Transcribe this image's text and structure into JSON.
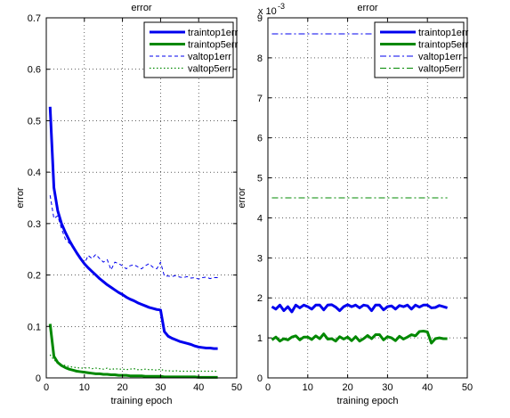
{
  "figure": {
    "left_title": "error",
    "right_title": "error",
    "right_exponent_base": "x 10",
    "right_exponent_power": "-3"
  },
  "chart_data": [
    {
      "type": "line",
      "title": "error",
      "xlabel": "training epoch",
      "ylabel": "error",
      "xlim": [
        0,
        50
      ],
      "ylim": [
        0,
        0.7
      ],
      "xticks": [
        0,
        10,
        20,
        30,
        40,
        50
      ],
      "yticks": [
        0,
        0.1,
        0.2,
        0.3,
        0.4,
        0.5,
        0.6,
        0.7
      ],
      "grid": true,
      "legend_position": "top-right",
      "x": [
        1,
        2,
        3,
        4,
        5,
        6,
        7,
        8,
        9,
        10,
        11,
        12,
        13,
        14,
        15,
        16,
        17,
        18,
        19,
        20,
        21,
        22,
        23,
        24,
        25,
        26,
        27,
        28,
        29,
        30,
        31,
        32,
        33,
        34,
        35,
        36,
        37,
        38,
        39,
        40,
        41,
        42,
        43,
        44,
        45
      ],
      "series": [
        {
          "name": "traintop1err",
          "color": "#0000ee",
          "style": "solid-thick",
          "values": [
            0.527,
            0.37,
            0.325,
            0.3,
            0.283,
            0.268,
            0.255,
            0.243,
            0.232,
            0.222,
            0.214,
            0.207,
            0.2,
            0.193,
            0.187,
            0.181,
            0.176,
            0.171,
            0.166,
            0.162,
            0.157,
            0.153,
            0.15,
            0.146,
            0.143,
            0.14,
            0.137,
            0.135,
            0.133,
            0.132,
            0.09,
            0.081,
            0.077,
            0.074,
            0.071,
            0.069,
            0.067,
            0.065,
            0.062,
            0.06,
            0.059,
            0.058,
            0.058,
            0.057,
            0.057
          ]
        },
        {
          "name": "traintop5err",
          "color": "#008800",
          "style": "solid-thick",
          "values": [
            0.105,
            0.042,
            0.03,
            0.024,
            0.02,
            0.017,
            0.015,
            0.013,
            0.012,
            0.011,
            0.01,
            0.009,
            0.008,
            0.008,
            0.007,
            0.007,
            0.006,
            0.006,
            0.005,
            0.005,
            0.005,
            0.004,
            0.004,
            0.004,
            0.004,
            0.003,
            0.003,
            0.003,
            0.003,
            0.003,
            0.002,
            0.002,
            0.002,
            0.002,
            0.002,
            0.002,
            0.002,
            0.002,
            0.002,
            0.001,
            0.001,
            0.001,
            0.001,
            0.001,
            0.001
          ]
        },
        {
          "name": "valtop1err",
          "color": "#0000ee",
          "style": "dashed",
          "values": [
            0.355,
            0.31,
            0.315,
            0.29,
            0.27,
            0.262,
            0.255,
            0.24,
            0.232,
            0.222,
            0.238,
            0.232,
            0.24,
            0.232,
            0.225,
            0.23,
            0.21,
            0.225,
            0.222,
            0.218,
            0.212,
            0.218,
            0.22,
            0.216,
            0.212,
            0.218,
            0.222,
            0.215,
            0.212,
            0.225,
            0.198,
            0.198,
            0.197,
            0.199,
            0.196,
            0.195,
            0.197,
            0.194,
            0.195,
            0.192,
            0.195,
            0.196,
            0.193,
            0.195,
            0.195
          ]
        },
        {
          "name": "valtop5err",
          "color": "#008800",
          "style": "dotted",
          "values": [
            0.045,
            0.035,
            0.03,
            0.026,
            0.024,
            0.022,
            0.021,
            0.02,
            0.019,
            0.019,
            0.02,
            0.018,
            0.019,
            0.018,
            0.017,
            0.019,
            0.016,
            0.018,
            0.017,
            0.017,
            0.016,
            0.017,
            0.018,
            0.016,
            0.016,
            0.017,
            0.016,
            0.016,
            0.015,
            0.017,
            0.014,
            0.014,
            0.013,
            0.014,
            0.013,
            0.013,
            0.013,
            0.013,
            0.013,
            0.013,
            0.013,
            0.013,
            0.013,
            0.013,
            0.013
          ]
        }
      ]
    },
    {
      "type": "line",
      "title": "error",
      "xlabel": "training epoch",
      "ylabel": "error",
      "xlim": [
        0,
        50
      ],
      "ylim": [
        0,
        0.009
      ],
      "xticks": [
        0,
        10,
        20,
        30,
        40,
        50
      ],
      "yticks": [
        0,
        0.001,
        0.002,
        0.003,
        0.004,
        0.005,
        0.006,
        0.007,
        0.008,
        0.009
      ],
      "ytick_labels": [
        "0",
        "1",
        "2",
        "3",
        "4",
        "5",
        "6",
        "7",
        "8",
        "9"
      ],
      "grid": true,
      "legend_position": "top-right",
      "x": [
        1,
        2,
        3,
        4,
        5,
        6,
        7,
        8,
        9,
        10,
        11,
        12,
        13,
        14,
        15,
        16,
        17,
        18,
        19,
        20,
        21,
        22,
        23,
        24,
        25,
        26,
        27,
        28,
        29,
        30,
        31,
        32,
        33,
        34,
        35,
        36,
        37,
        38,
        39,
        40,
        41,
        42,
        43,
        44,
        45
      ],
      "series": [
        {
          "name": "traintop1err",
          "color": "#0000ee",
          "style": "solid-thick",
          "values": [
            0.00178,
            0.00172,
            0.00182,
            0.00168,
            0.00178,
            0.00165,
            0.00182,
            0.00175,
            0.00182,
            0.00178,
            0.00172,
            0.00182,
            0.00182,
            0.0017,
            0.00182,
            0.00183,
            0.00177,
            0.00168,
            0.00178,
            0.00183,
            0.00178,
            0.00182,
            0.00175,
            0.00182,
            0.0018,
            0.00168,
            0.00182,
            0.00182,
            0.0017,
            0.00178,
            0.0018,
            0.00172,
            0.00181,
            0.00178,
            0.00182,
            0.00172,
            0.00182,
            0.00177,
            0.00182,
            0.00182,
            0.00175,
            0.00176,
            0.00181,
            0.00178,
            0.00175
          ]
        },
        {
          "name": "traintop5err",
          "color": "#008800",
          "style": "solid-thick",
          "values": [
            0.00095,
            0.00102,
            0.00092,
            0.00098,
            0.00095,
            0.00102,
            0.00105,
            0.00095,
            0.00102,
            0.00102,
            0.00096,
            0.00105,
            0.00098,
            0.0011,
            0.00097,
            0.00098,
            0.00092,
            0.00103,
            0.00097,
            0.00102,
            0.00093,
            0.00103,
            0.00092,
            0.00098,
            0.00106,
            0.00098,
            0.00108,
            0.00108,
            0.00095,
            0.00103,
            0.001,
            0.00093,
            0.00104,
            0.00097,
            0.00102,
            0.00108,
            0.00105,
            0.00116,
            0.00117,
            0.00115,
            0.00087,
            0.00098,
            0.001,
            0.00098,
            0.00098
          ]
        },
        {
          "name": "valtop1err",
          "color": "#0000ee",
          "style": "dashdot",
          "values": [
            0.0086,
            0.0086,
            0.0086,
            0.0086,
            0.0086,
            0.0086,
            0.0086,
            0.0086,
            0.0086,
            0.0086,
            0.0086,
            0.0086,
            0.0086,
            0.0086,
            0.0086,
            0.0086,
            0.0086,
            0.0086,
            0.0086,
            0.0086,
            0.0086,
            0.0086,
            0.0086,
            0.0086,
            0.0086,
            0.0086,
            0.0086,
            0.0086,
            0.0086,
            0.0086,
            0.0086,
            0.0086,
            0.0086,
            0.0086,
            0.0086,
            0.0086,
            0.0086,
            0.0086,
            0.0086,
            0.0086,
            0.0086,
            0.0086,
            0.0086,
            0.0086,
            0.0086
          ]
        },
        {
          "name": "valtop5err",
          "color": "#008800",
          "style": "dashdot",
          "values": [
            0.0045,
            0.0045,
            0.0045,
            0.0045,
            0.0045,
            0.0045,
            0.0045,
            0.0045,
            0.0045,
            0.0045,
            0.0045,
            0.0045,
            0.0045,
            0.0045,
            0.0045,
            0.0045,
            0.0045,
            0.0045,
            0.0045,
            0.0045,
            0.0045,
            0.0045,
            0.0045,
            0.0045,
            0.0045,
            0.0045,
            0.0045,
            0.0045,
            0.0045,
            0.0045,
            0.0045,
            0.0045,
            0.0045,
            0.0045,
            0.0045,
            0.0045,
            0.0045,
            0.0045,
            0.0045,
            0.0045,
            0.0045,
            0.0045,
            0.0045,
            0.0045,
            0.0045
          ]
        }
      ]
    }
  ]
}
